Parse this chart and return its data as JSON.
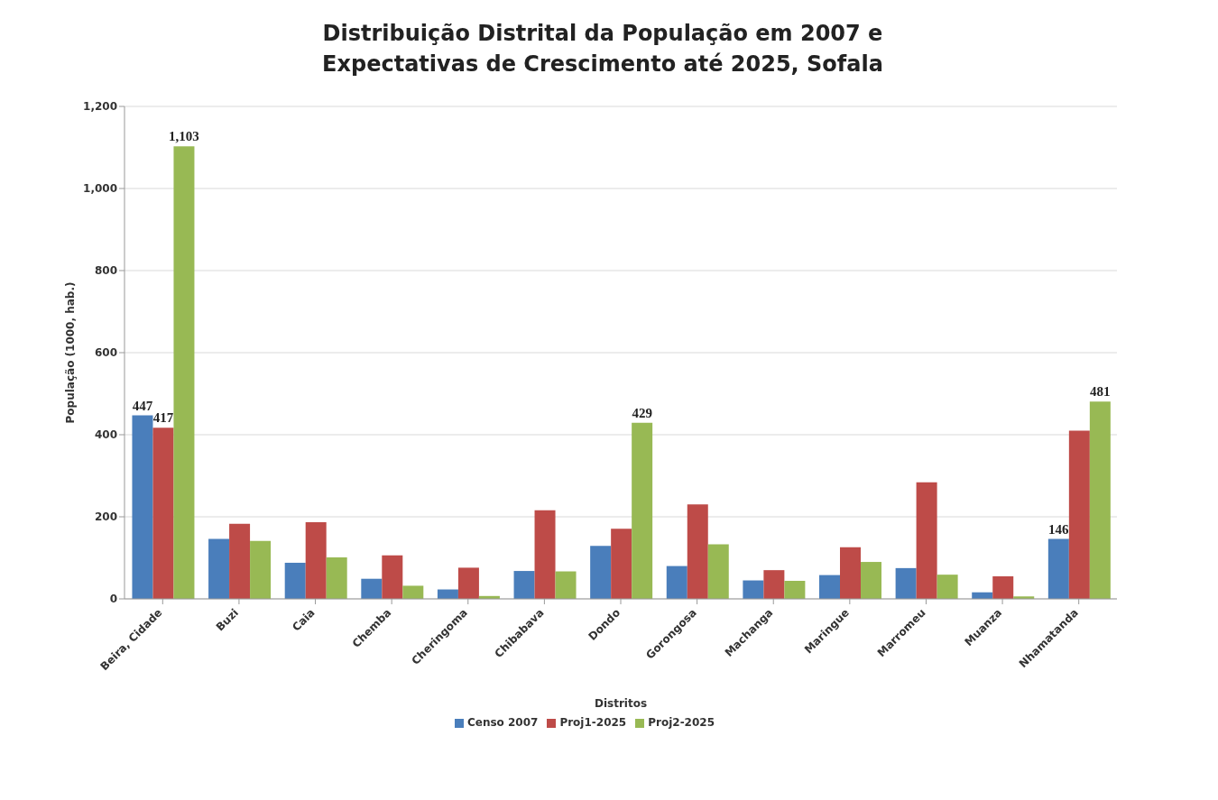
{
  "chart_data": {
    "type": "bar",
    "title": "Distribuição Distrital da População em 2007 e  Expectativas de Crescimento até 2025, Sofala",
    "xlabel": "Distritos",
    "ylabel": "População (1000, hab.)",
    "categories": [
      "Beira, Cidade",
      "Buzi",
      "Caia",
      "Chemba",
      "Cheringoma",
      "Chibabava",
      "Dondo",
      "Gorongosa",
      "Machanga",
      "Maringue",
      "Marromeu",
      "Muanza",
      "Nhamatanda"
    ],
    "series": [
      {
        "name": "Censo 2007",
        "color": "#4a7ebb",
        "values": [
          447,
          146,
          88,
          49,
          23,
          68,
          129,
          80,
          45,
          58,
          75,
          16,
          146
        ],
        "value_labels": [
          "447",
          null,
          null,
          null,
          null,
          null,
          null,
          null,
          null,
          null,
          null,
          null,
          "146"
        ]
      },
      {
        "name": "Proj1-2025",
        "color": "#be4b48",
        "values": [
          417,
          183,
          187,
          106,
          76,
          216,
          171,
          230,
          70,
          126,
          284,
          55,
          410
        ],
        "value_labels": [
          "417",
          null,
          null,
          null,
          null,
          null,
          null,
          null,
          null,
          null,
          null,
          null,
          null
        ]
      },
      {
        "name": "Proj2-2025",
        "color": "#98b954",
        "values": [
          1103,
          141,
          101,
          32,
          7,
          67,
          429,
          133,
          44,
          90,
          59,
          6,
          481
        ],
        "value_labels": [
          "1,103",
          null,
          null,
          null,
          null,
          null,
          "429",
          null,
          null,
          null,
          null,
          null,
          "481"
        ]
      }
    ],
    "ylim": [
      0,
      1200
    ],
    "yticks": [
      0,
      200,
      400,
      600,
      800,
      {
        "value": 1000,
        "label": "1,000"
      },
      {
        "value": 1200,
        "label": "1,200"
      }
    ],
    "grid": "y",
    "legend": "bottom"
  }
}
